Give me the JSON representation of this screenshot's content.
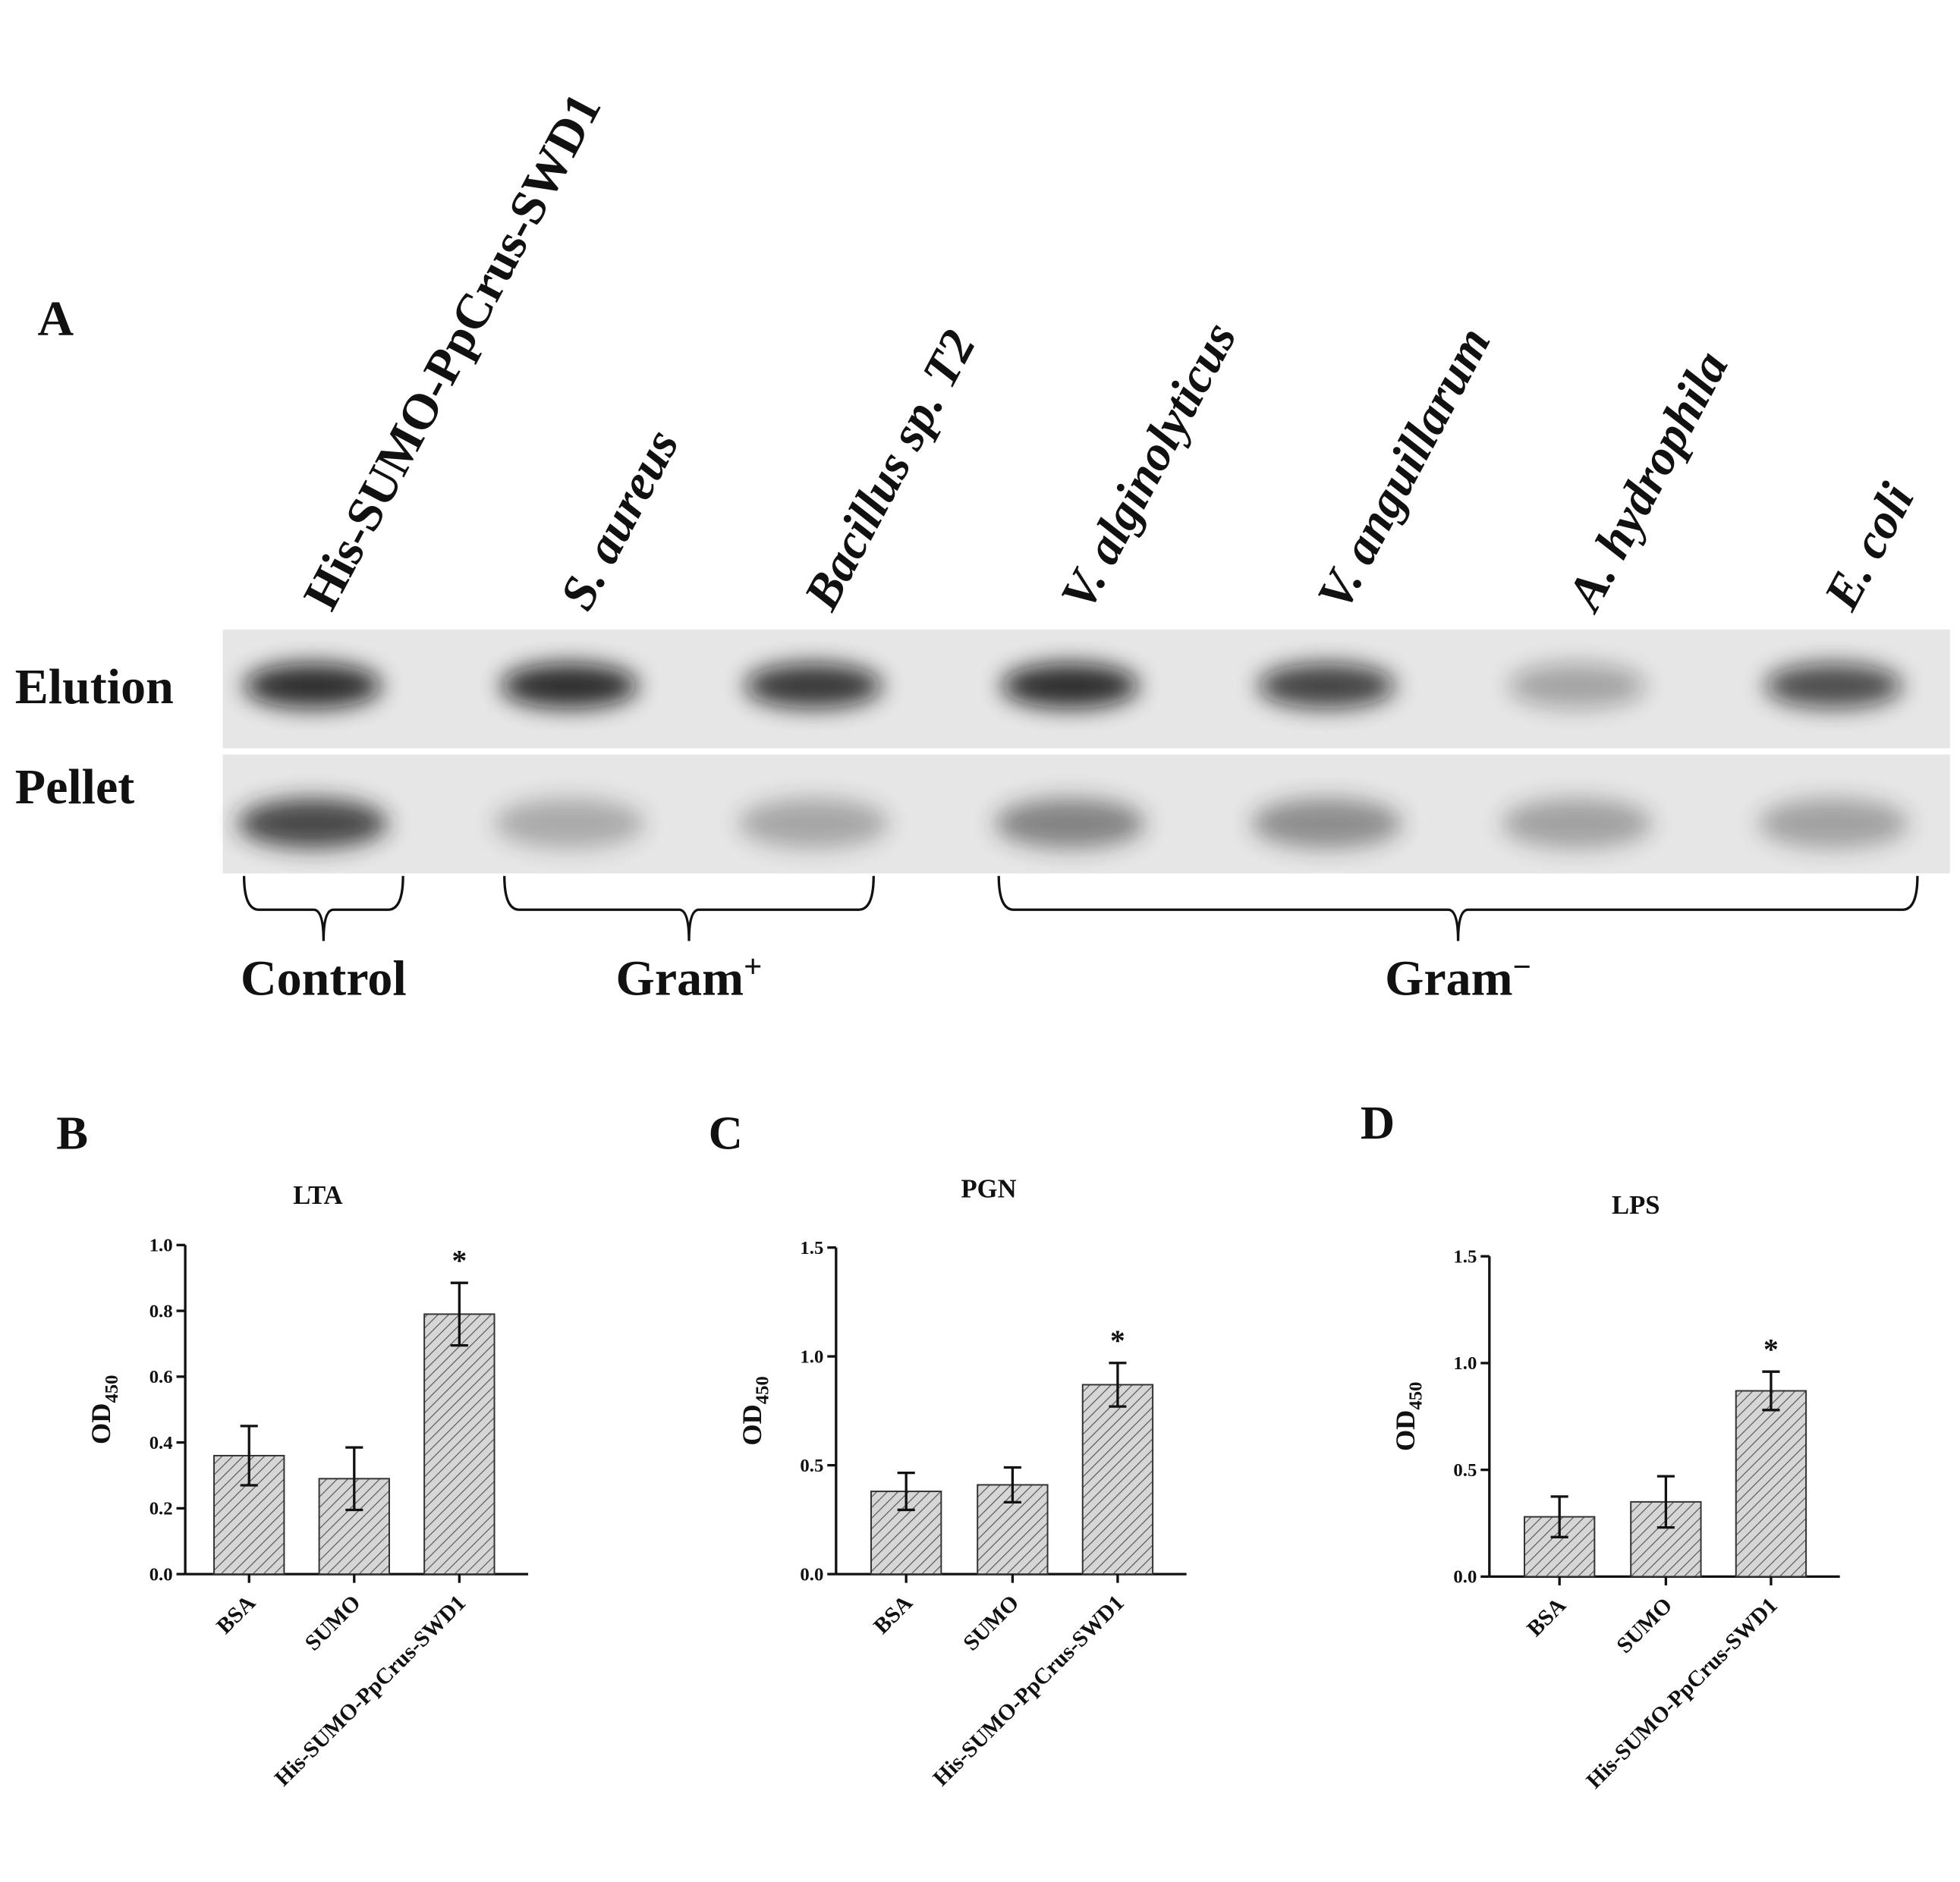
{
  "panel_a": {
    "label": "A",
    "lanes": [
      "His-SUMO-PpCrus-SWD1",
      "S. aureus",
      "Bacillus sp. T2",
      "V. alginolyticus",
      "V. anguillarum",
      "A. hydrophila",
      "E. coli"
    ],
    "rows": [
      "Elution",
      "Pellet"
    ],
    "groups": [
      {
        "label": "Control"
      },
      {
        "label": "Gram",
        "sup": "+"
      },
      {
        "label": "Gram",
        "sup": "−"
      }
    ]
  },
  "chart_data": [
    {
      "type": "bar",
      "panel": "B",
      "title": "LTA",
      "y_label": "OD",
      "y_label_sub": "450",
      "categories": [
        "BSA",
        "SUMO",
        "His-SUMO-PpCrus-SWD1"
      ],
      "values": [
        0.36,
        0.29,
        0.79
      ],
      "errors": [
        0.09,
        0.095,
        0.095
      ],
      "annotations": [
        {
          "category": "His-SUMO-PpCrus-SWD1",
          "text": "*"
        }
      ],
      "ylim": [
        0,
        1.0
      ],
      "yticks": [
        {
          "value": 0,
          "label": "0.0"
        },
        0.2,
        0.4,
        0.6,
        0.8,
        {
          "value": 1.0,
          "label": "1.0"
        }
      ],
      "color": "#d0d0d0"
    },
    {
      "type": "bar",
      "panel": "C",
      "title": "PGN",
      "y_label": "OD",
      "y_label_sub": "450",
      "categories": [
        "BSA",
        "SUMO",
        "His-SUMO-PpCrus-SWD1"
      ],
      "values": [
        0.38,
        0.41,
        0.87
      ],
      "errors": [
        0.085,
        0.08,
        0.1
      ],
      "annotations": [
        {
          "category": "His-SUMO-PpCrus-SWD1",
          "text": "*"
        }
      ],
      "ylim": [
        0,
        1.5
      ],
      "yticks": [
        {
          "value": 0,
          "label": "0.0"
        },
        0.5,
        {
          "value": 1.0,
          "label": "1.0"
        },
        1.5
      ],
      "color": "#d0d0d0"
    },
    {
      "type": "bar",
      "panel": "D",
      "title": "LPS",
      "y_label": "OD",
      "y_label_sub": "450",
      "categories": [
        "BSA",
        "SUMO",
        "His-SUMO-PpCrus-SWD1"
      ],
      "values": [
        0.28,
        0.35,
        0.87
      ],
      "errors": [
        0.095,
        0.12,
        0.09
      ],
      "annotations": [
        {
          "category": "His-SUMO-PpCrus-SWD1",
          "text": "*"
        }
      ],
      "ylim": [
        0,
        1.5
      ],
      "yticks": [
        {
          "value": 0,
          "label": "0.0"
        },
        0.5,
        {
          "value": 1.0,
          "label": "1.0"
        },
        1.5
      ],
      "color": "#d0d0d0"
    }
  ]
}
